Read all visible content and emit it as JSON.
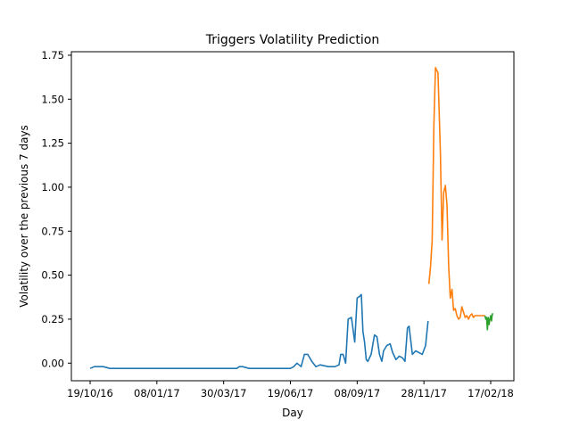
{
  "chart_data": {
    "type": "line",
    "title": "Triggers Volatility Prediction",
    "xlabel": "Day",
    "ylabel": "Volatility over the previous 7 days",
    "x_tick_labels": [
      "19/10/16",
      "08/01/17",
      "30/03/17",
      "19/06/17",
      "08/09/17",
      "28/11/17",
      "17/02/18"
    ],
    "y_tick_labels": [
      "0.00",
      "0.25",
      "0.50",
      "0.75",
      "1.00",
      "1.25",
      "1.50",
      "1.75"
    ],
    "ylim": [
      -0.1,
      1.77
    ],
    "grid": false,
    "legend": "none",
    "series": [
      {
        "color": "#1f77b4",
        "x": [
          "19/10/16",
          "24/10/16",
          "04/11/16",
          "12/11/16",
          "15/12/16",
          "15/02/17",
          "15/04/17",
          "18/04/17",
          "22/04/17",
          "30/04/17",
          "30/05/17",
          "12/06/17",
          "15/06/17",
          "19/06/17",
          "23/06/17",
          "27/06/17",
          "02/07/17",
          "06/07/17",
          "10/07/17",
          "15/07/17",
          "20/07/17",
          "25/07/17",
          "04/08/17",
          "12/08/17",
          "17/08/17",
          "19/08/17",
          "22/08/17",
          "25/08/17",
          "28/08/17",
          "01/09/17",
          "05/09/17",
          "08/09/17",
          "11/09/17",
          "13/09/17",
          "15/09/17",
          "17/09/17",
          "19/09/17",
          "21/09/17",
          "25/09/17",
          "29/09/17",
          "02/10/17",
          "05/10/17",
          "08/10/17",
          "10/10/17",
          "14/10/17",
          "18/10/17",
          "21/10/17",
          "25/10/17",
          "29/10/17",
          "02/11/17",
          "05/11/17",
          "08/11/17",
          "10/11/17",
          "14/11/17",
          "18/11/17",
          "22/11/17",
          "26/11/17",
          "30/11/17",
          "03/12/17",
          "06/12/17",
          "08/12/17",
          "10/12/17",
          "12/12/17",
          "16/12/17",
          "19/12/17",
          "23/12/17",
          "26/12/17"
        ],
        "y": [
          -0.03,
          -0.02,
          -0.02,
          -0.03,
          -0.03,
          -0.03,
          -0.03,
          -0.02,
          -0.02,
          -0.03,
          -0.03,
          -0.03,
          -0.03,
          -0.03,
          -0.02,
          0.0,
          -0.02,
          0.05,
          0.05,
          0.01,
          -0.02,
          -0.01,
          -0.02,
          -0.02,
          -0.01,
          0.05,
          0.05,
          0.0,
          0.25,
          0.26,
          0.12,
          0.37,
          0.38,
          0.39,
          0.18,
          0.12,
          0.02,
          0.01,
          0.05,
          0.16,
          0.15,
          0.05,
          0.01,
          0.07,
          0.1,
          0.11,
          0.06,
          0.02,
          0.04,
          0.03,
          0.01,
          0.2,
          0.21,
          0.05,
          0.07,
          0.06,
          0.24,
          0.45,
          0.55,
          0.7,
          1.3,
          1.65,
          1.66,
          0.7,
          1.0,
          1.01,
          0.9
        ],
        "note_x_unused": ""
      }
    ],
    "series_blue": {
      "color": "#1f77b4",
      "x": [
        "19/10/16",
        "24/10/16",
        "04/11/16",
        "12/11/16",
        "15/12/16",
        "15/02/17",
        "15/04/17",
        "18/04/17",
        "22/04/17",
        "30/04/17",
        "30/05/17",
        "12/06/17",
        "15/06/17",
        "19/06/17",
        "23/06/17",
        "27/06/17",
        "02/07/17",
        "06/07/17",
        "10/07/17",
        "15/07/17",
        "20/07/17",
        "25/07/17",
        "04/08/17",
        "12/08/17",
        "17/08/17",
        "19/08/17",
        "22/08/17",
        "25/08/17",
        "28/08/17",
        "01/09/17",
        "05/09/17",
        "08/09/17",
        "11/09/17",
        "13/09/17",
        "15/09/17",
        "17/09/17",
        "19/09/17",
        "21/09/17",
        "25/09/17",
        "29/09/17",
        "02/10/17",
        "05/10/17",
        "08/10/17",
        "10/10/17",
        "14/10/17",
        "18/10/17",
        "21/10/17",
        "25/10/17",
        "29/10/17",
        "02/11/17",
        "05/11/17",
        "08/11/17",
        "10/11/17",
        "14/11/17",
        "18/11/17",
        "22/11/17",
        "26/11/17",
        "30/11/17",
        "03/12/17"
      ],
      "y": [
        -0.03,
        -0.02,
        -0.02,
        -0.03,
        -0.03,
        -0.03,
        -0.03,
        -0.02,
        -0.02,
        -0.03,
        -0.03,
        -0.03,
        -0.03,
        -0.03,
        -0.02,
        0.0,
        -0.02,
        0.05,
        0.05,
        0.01,
        -0.02,
        -0.01,
        -0.02,
        -0.02,
        -0.01,
        0.05,
        0.05,
        0.0,
        0.25,
        0.26,
        0.12,
        0.37,
        0.38,
        0.39,
        0.18,
        0.12,
        0.02,
        0.01,
        0.05,
        0.16,
        0.15,
        0.05,
        0.01,
        0.07,
        0.1,
        0.11,
        0.06,
        0.02,
        0.04,
        0.03,
        0.01,
        0.2,
        0.21,
        0.05,
        0.07,
        0.06,
        0.05,
        0.1,
        0.24
      ]
    },
    "series_orange": {
      "color": "#ff7f0e",
      "x": [
        "04/12/17",
        "06/12/17",
        "08/12/17",
        "10/12/17",
        "12/12/17",
        "15/12/17",
        "18/12/17",
        "20/12/17",
        "22/12/17",
        "24/12/17",
        "26/12/17",
        "28/12/17",
        "30/12/17",
        "01/01/18",
        "03/01/18",
        "05/01/18",
        "07/01/18",
        "09/01/18",
        "11/01/18",
        "13/01/18",
        "15/01/18",
        "17/01/18",
        "19/01/18",
        "21/01/18",
        "23/01/18",
        "25/01/18",
        "27/01/18",
        "29/01/18",
        "31/01/18",
        "02/02/18",
        "04/02/18",
        "06/02/18",
        "08/02/18",
        "10/02/18"
      ],
      "y": [
        0.45,
        0.55,
        0.7,
        1.35,
        1.68,
        1.65,
        1.2,
        0.7,
        0.97,
        1.01,
        0.9,
        0.55,
        0.37,
        0.42,
        0.3,
        0.31,
        0.27,
        0.25,
        0.26,
        0.32,
        0.29,
        0.26,
        0.27,
        0.25,
        0.27,
        0.28,
        0.26,
        0.27,
        0.27,
        0.27,
        0.27,
        0.27,
        0.27,
        0.27
      ]
    },
    "series_green": {
      "color": "#2ca02c",
      "x": [
        "10/02/18",
        "11/02/18",
        "12/02/18",
        "13/02/18",
        "14/02/18",
        "15/02/18",
        "16/02/18",
        "17/02/18",
        "18/02/18",
        "19/02/18",
        "20/02/18"
      ],
      "y": [
        0.27,
        0.25,
        0.26,
        0.19,
        0.26,
        0.22,
        0.25,
        0.27,
        0.24,
        0.28,
        0.28
      ]
    }
  }
}
